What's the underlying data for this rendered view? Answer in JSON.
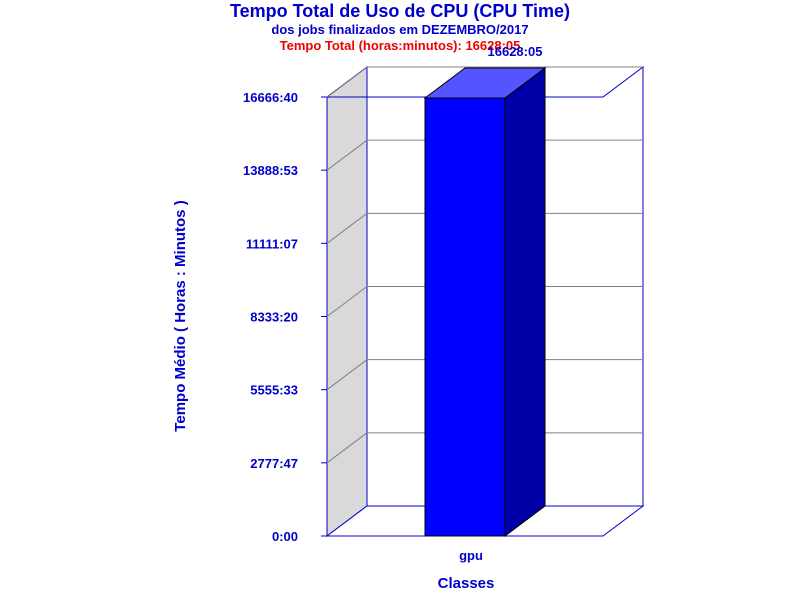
{
  "chart_data": {
    "type": "bar",
    "title": "Tempo Total de Uso de CPU (CPU Time)",
    "subtitle": "dos jobs finalizados em DEZEMBRO/2017",
    "subtitle2": "Tempo Total (horas:minutos): 16628:05",
    "xlabel": "Classes",
    "ylabel": "Tempo Médio ( Horas : Minutos )",
    "categories": [
      "gpu"
    ],
    "values": [
      997685
    ],
    "value_labels": [
      "16628:05"
    ],
    "ylim": [
      0,
      1000000
    ],
    "y_tick_values": [
      0,
      166667,
      333333,
      500000,
      666667,
      833333,
      1000000
    ],
    "y_tick_labels": [
      "0:00",
      "2777:47",
      "5555:33",
      "8333:20",
      "11111:07",
      "13888:53",
      "16666:40"
    ],
    "grid": true,
    "three_d": true,
    "colors": {
      "text": "#0000cc",
      "subtitle_highlight": "#ee0000",
      "bar_front": "#0000ff",
      "bar_top": "#5555ff",
      "bar_side": "#0000a8",
      "axis_lines": "#0000cc",
      "grid": "#808080",
      "left_wall": "#d9d9d9"
    }
  }
}
